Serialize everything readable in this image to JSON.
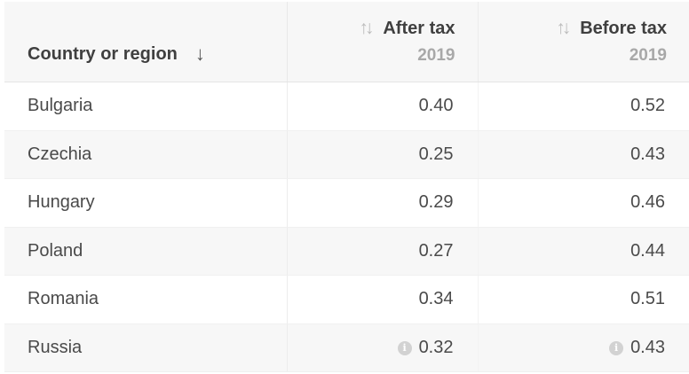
{
  "table": {
    "header": {
      "country_label": "Country or region",
      "country_sort_icon": "arrow-down-icon",
      "columns": [
        {
          "label": "After tax",
          "year": "2019",
          "sort_icon": "sort-updown-icon"
        },
        {
          "label": "Before tax",
          "year": "2019",
          "sort_icon": "sort-updown-icon"
        }
      ]
    },
    "rows": [
      {
        "country": "Bulgaria",
        "after": "0.40",
        "before": "0.52",
        "after_info": false,
        "before_info": false
      },
      {
        "country": "Czechia",
        "after": "0.25",
        "before": "0.43",
        "after_info": false,
        "before_info": false
      },
      {
        "country": "Hungary",
        "after": "0.29",
        "before": "0.46",
        "after_info": false,
        "before_info": false
      },
      {
        "country": "Poland",
        "after": "0.27",
        "before": "0.44",
        "after_info": false,
        "before_info": false
      },
      {
        "country": "Romania",
        "after": "0.34",
        "before": "0.51",
        "after_info": false,
        "before_info": false
      },
      {
        "country": "Russia",
        "after": "0.32",
        "before": "0.43",
        "after_info": true,
        "before_info": true
      }
    ]
  },
  "colors": {
    "header_bg": "#f7f7f7",
    "stripe_bg": "#f7f7f7",
    "text": "#4a4a4a",
    "muted": "#a8a8a8",
    "info_icon": "#d2d2d2"
  }
}
